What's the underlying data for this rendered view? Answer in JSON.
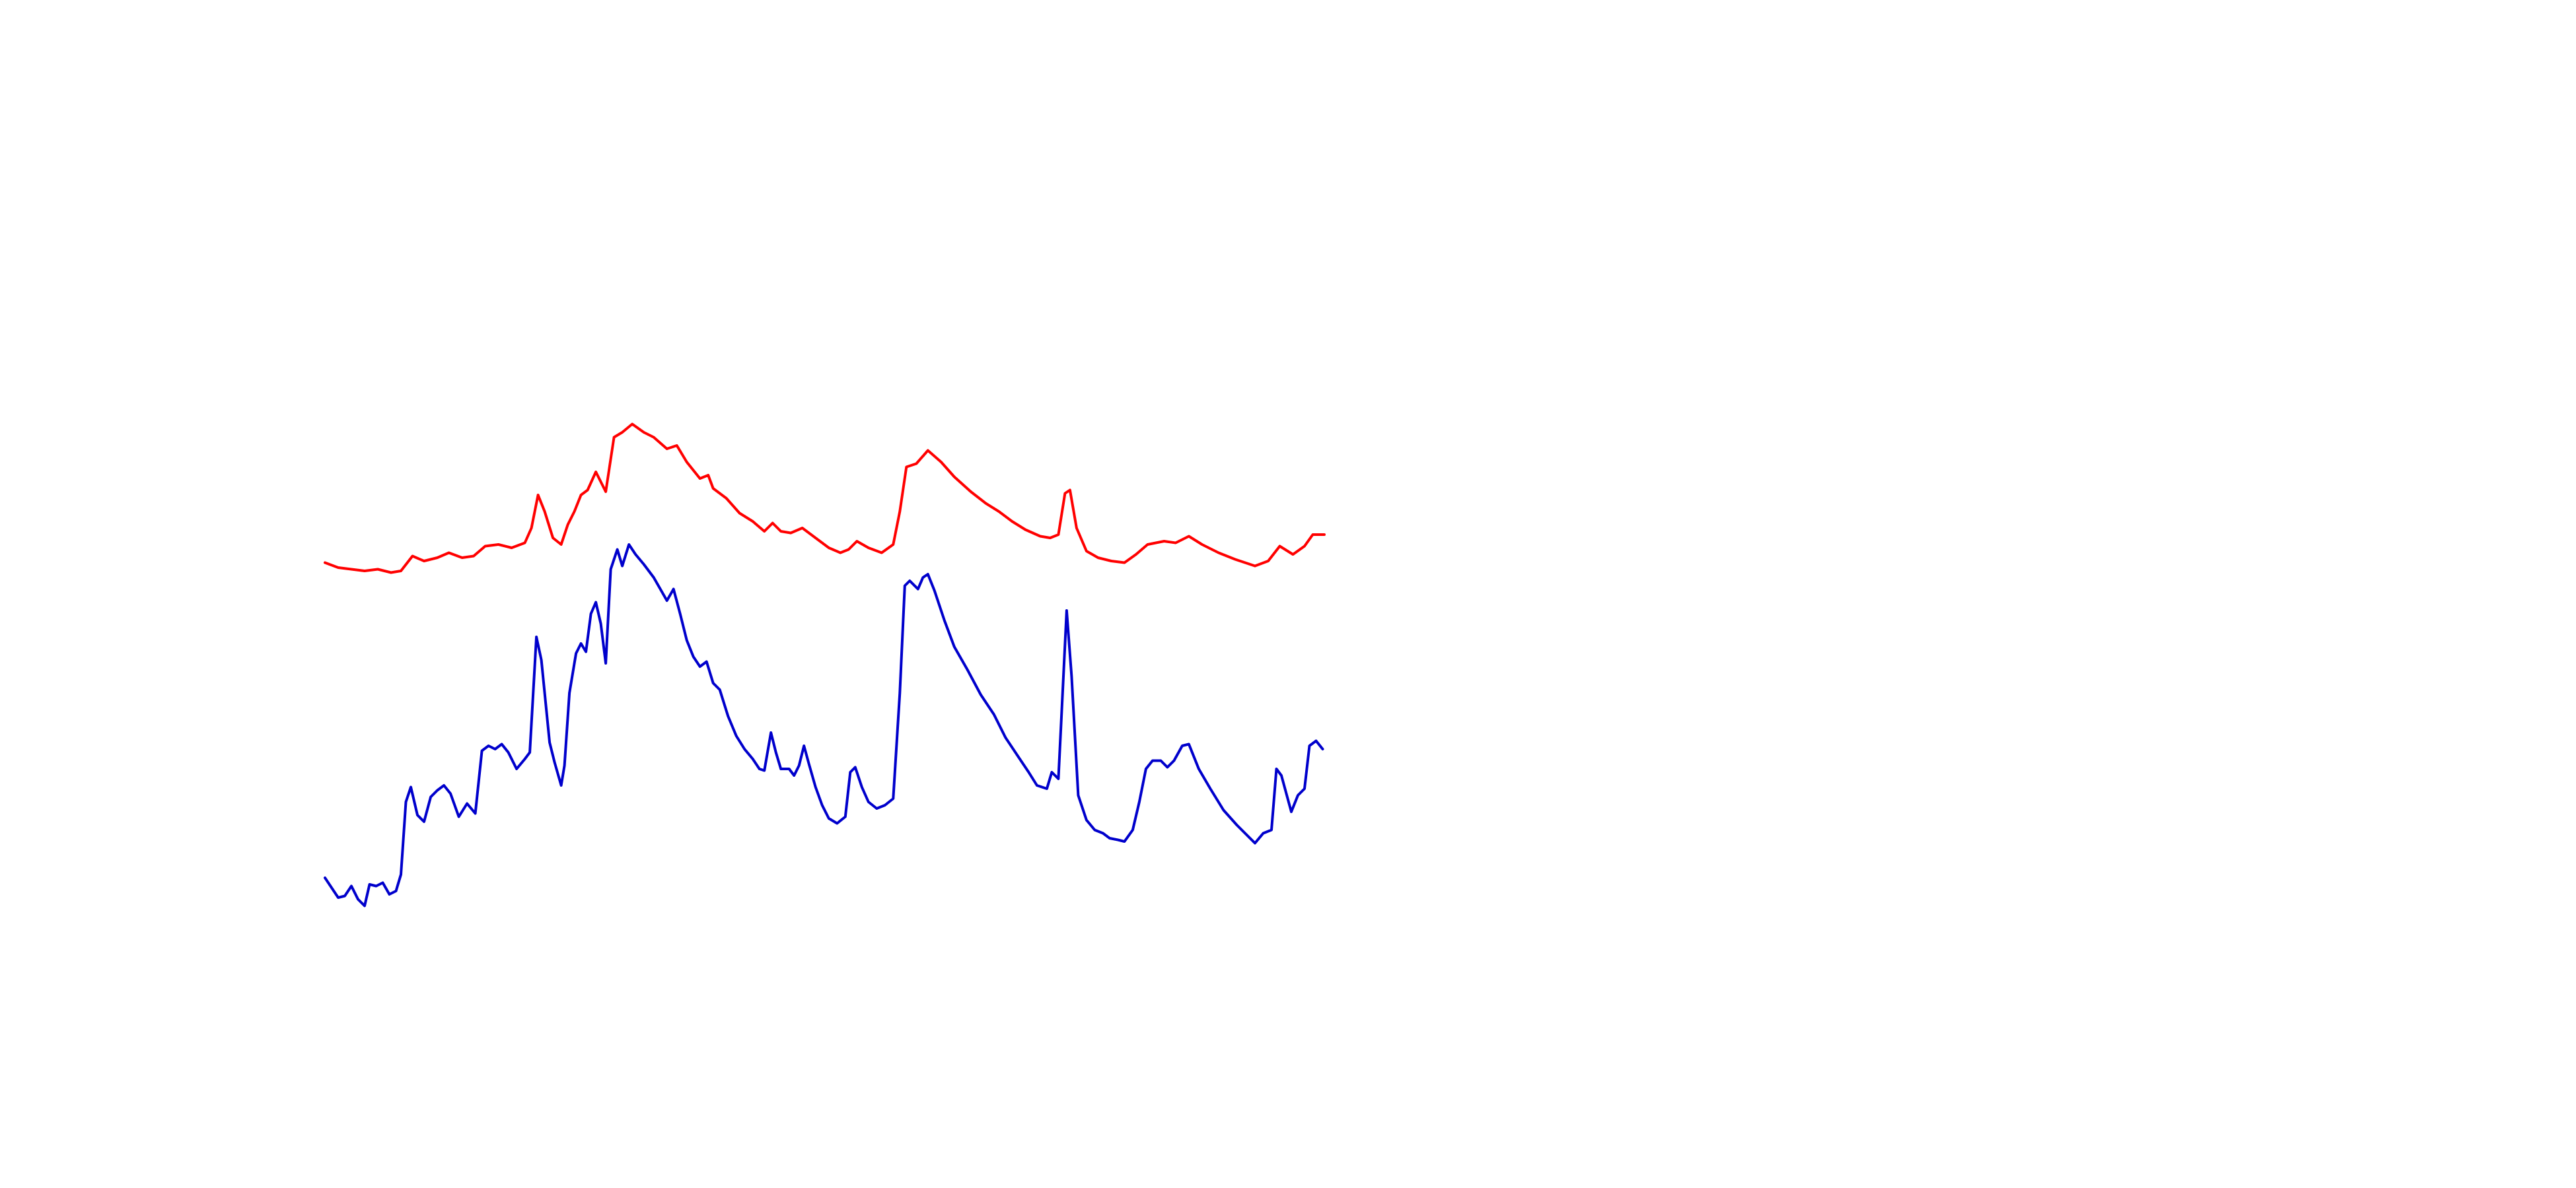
{
  "chart_data": {
    "type": "line",
    "xlim": [
      0,
      605
    ],
    "ylim": [
      0,
      310
    ],
    "grid": false,
    "series": [
      {
        "color": "#ff0000",
        "x": [
          0,
          8,
          16,
          24,
          32,
          40,
          46,
          53,
          60,
          68,
          75,
          83,
          90,
          97,
          105,
          113,
          121,
          125,
          129,
          133,
          138,
          143,
          147,
          151,
          155,
          159,
          164,
          170,
          175,
          180,
          186,
          193,
          199,
          207,
          213,
          219,
          227,
          232,
          235,
          243,
          251,
          259,
          266,
          271,
          276,
          282,
          289,
          297,
          305,
          312,
          317,
          322,
          329,
          337,
          344,
          348,
          352,
          358,
          365,
          373,
          381,
          391,
          400,
          408,
          416,
          424,
          433,
          439,
          444,
          448,
          451,
          455,
          461,
          468,
          476,
          484,
          491,
          498,
          508,
          515,
          523,
          531,
          541,
          551,
          563,
          571,
          578,
          586,
          593,
          598,
          605
        ],
        "values": [
          219,
          216,
          215,
          214,
          215,
          213,
          214,
          223,
          220,
          222,
          225,
          222,
          223,
          229,
          230,
          228,
          231,
          240,
          260,
          250,
          234,
          230,
          242,
          250,
          260,
          263,
          274,
          262,
          295,
          298,
          303,
          298,
          295,
          288,
          290,
          280,
          270,
          272,
          264,
          258,
          249,
          244,
          238,
          243,
          238,
          237,
          240,
          234,
          228,
          225,
          227,
          232,
          228,
          225,
          230,
          250,
          277,
          279,
          287,
          280,
          271,
          262,
          255,
          250,
          244,
          239,
          235,
          234,
          236,
          261,
          263,
          240,
          226,
          222,
          220,
          219,
          224,
          230,
          232,
          231,
          235,
          230,
          225,
          221,
          217,
          220,
          229,
          224,
          229,
          236,
          236
        ]
      },
      {
        "color": "#0000cc",
        "x": [
          0,
          4,
          8,
          12,
          16,
          20,
          24,
          27,
          31,
          35,
          39,
          43,
          46,
          49,
          52,
          56,
          60,
          64,
          68,
          72,
          76,
          81,
          86,
          91,
          95,
          99,
          103,
          107,
          111,
          116,
          121,
          124,
          128,
          131,
          136,
          139,
          143,
          145,
          148,
          152,
          155,
          158,
          161,
          164,
          167,
          170,
          173,
          177,
          180,
          184,
          188,
          193,
          199,
          207,
          211,
          215,
          219,
          223,
          227,
          231,
          235,
          239,
          244,
          249,
          254,
          259,
          263,
          266,
          270,
          273,
          276,
          281,
          284,
          287,
          290,
          293,
          297,
          301,
          305,
          310,
          315,
          318,
          321,
          325,
          329,
          334,
          339,
          344,
          348,
          351,
          354,
          359,
          362,
          365,
          369,
          375,
          381,
          389,
          397,
          405,
          412,
          420,
          426,
          431,
          437,
          440,
          444,
          449,
          452,
          456,
          461,
          466,
          471,
          475,
          480,
          484,
          489,
          493,
          497,
          501,
          506,
          510,
          514,
          519,
          523,
          529,
          536,
          544,
          552,
          558,
          563,
          568,
          573,
          576,
          579,
          585,
          589,
          593,
          596,
          600,
          604
        ],
        "values": [
          28,
          22,
          16,
          17,
          23,
          15,
          11,
          24,
          23,
          25,
          18,
          20,
          30,
          74,
          83,
          66,
          62,
          77,
          81,
          84,
          79,
          65,
          73,
          67,
          105,
          108,
          106,
          109,
          104,
          94,
          100,
          104,
          174,
          160,
          110,
          98,
          84,
          96,
          140,
          164,
          170,
          165,
          188,
          195,
          182,
          158,
          215,
          227,
          217,
          230,
          224,
          218,
          210,
          196,
          203,
          188,
          172,
          162,
          156,
          159,
          146,
          142,
          126,
          114,
          106,
          100,
          94,
          93,
          116,
          104,
          94,
          94,
          90,
          96,
          108,
          97,
          83,
          72,
          64,
          61,
          65,
          92,
          95,
          83,
          74,
          70,
          72,
          76,
          140,
          205,
          208,
          203,
          210,
          212,
          202,
          184,
          168,
          154,
          139,
          127,
          113,
          101,
          92,
          84,
          82,
          92,
          88,
          190,
          150,
          78,
          63,
          57,
          55,
          52,
          51,
          50,
          57,
          74,
          94,
          99,
          99,
          95,
          99,
          108,
          109,
          94,
          82,
          69,
          60,
          54,
          49,
          55,
          57,
          94,
          90,
          68,
          78,
          82,
          108,
          111,
          106
        ]
      }
    ]
  }
}
